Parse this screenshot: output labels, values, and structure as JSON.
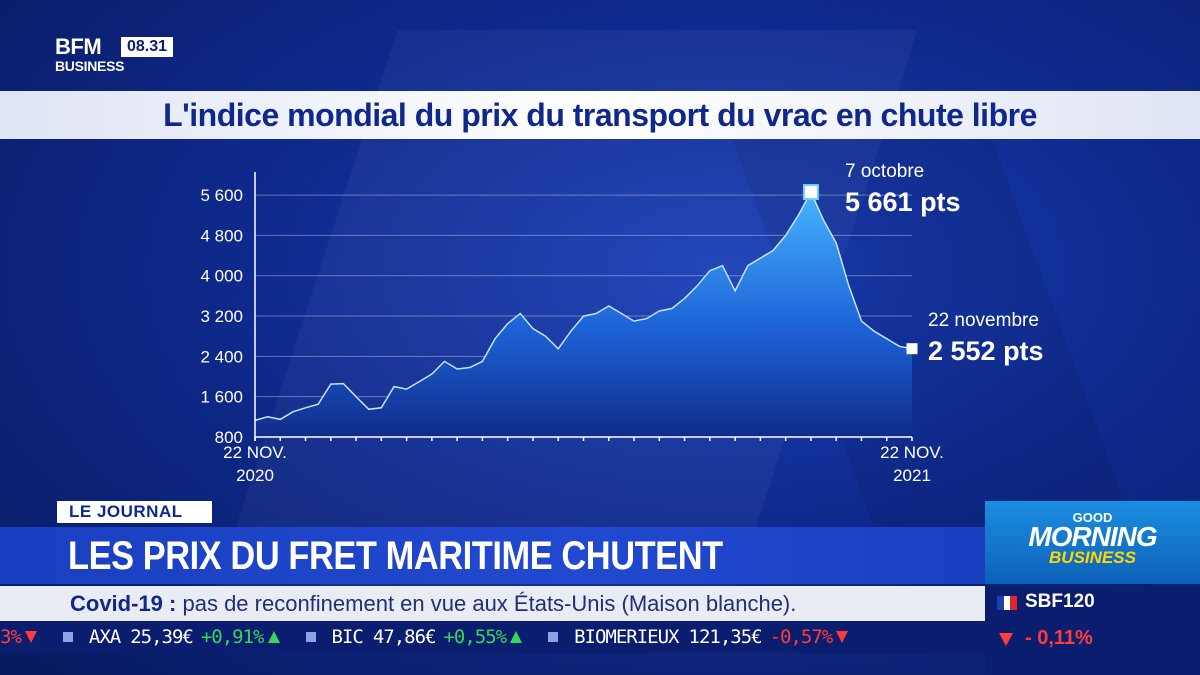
{
  "channel": {
    "logo_top": "BFM",
    "logo_bottom": "BUSINESS",
    "time": "08.31"
  },
  "title": "L'indice mondial du prix du transport du vrac en chute libre",
  "chart_data": {
    "type": "area",
    "title": "L'indice mondial du prix du transport du vrac en chute libre",
    "yticks": [
      "5 600",
      "4 800",
      "4 000",
      "3 200",
      "2 400",
      "1 600",
      "800"
    ],
    "ytick_values": [
      5600,
      4800,
      4000,
      3200,
      2400,
      1600,
      800
    ],
    "ylim": [
      800,
      5900
    ],
    "xlim": [
      0,
      52
    ],
    "x_start_label": [
      "22 NOV.",
      "2020"
    ],
    "x_end_label": [
      "22 NOV.",
      "2021"
    ],
    "grid": true,
    "color": "#2a8ff0",
    "series": [
      {
        "x": [
          0,
          1,
          2,
          3,
          4,
          5,
          6,
          7,
          8,
          9,
          10,
          11,
          12,
          13,
          14,
          15,
          16,
          17,
          18,
          19,
          20,
          21,
          22,
          23,
          24,
          25,
          26,
          27,
          28,
          29,
          30,
          31,
          32,
          33,
          34,
          35,
          36,
          37,
          38,
          39,
          40,
          41,
          42,
          43,
          44,
          45,
          46,
          47,
          48,
          49,
          50,
          51,
          52
        ],
        "values": [
          1130,
          1200,
          1150,
          1300,
          1380,
          1450,
          1850,
          1860,
          1600,
          1350,
          1380,
          1800,
          1750,
          1900,
          2050,
          2300,
          2150,
          2180,
          2300,
          2750,
          3050,
          3250,
          2950,
          2800,
          2550,
          2900,
          3200,
          3250,
          3400,
          3250,
          3100,
          3150,
          3300,
          3350,
          3550,
          3800,
          4100,
          4200,
          3700,
          4200,
          4350,
          4500,
          4800,
          5200,
          5661,
          5100,
          4650,
          3800,
          3100,
          2900,
          2750,
          2600,
          2552
        ]
      }
    ],
    "annotations": [
      {
        "date": "7 octobre",
        "value": "5 661 pts",
        "x": 44,
        "y": 5661
      },
      {
        "date": "22 novembre",
        "value": "2 552 pts",
        "x": 52,
        "y": 2552
      }
    ]
  },
  "lower_third": {
    "tag": "LE JOURNAL",
    "headline": "LES PRIX DU FRET MARITIME CHUTENT"
  },
  "news": {
    "topic": "Covid-19 :",
    "text": "pas de reconfinement en vue aux États-Unis (Maison blanche)."
  },
  "stocks": [
    {
      "symbol": "",
      "price": "",
      "change": "3%",
      "direction": "down"
    },
    {
      "symbol": "AXA",
      "price": "25,39€",
      "change": "+0,91%",
      "direction": "up"
    },
    {
      "symbol": "BIC",
      "price": "47,86€",
      "change": "+0,55%",
      "direction": "up"
    },
    {
      "symbol": "BIOMERIEUX",
      "price": "121,35€",
      "change": "-0,57%",
      "direction": "down"
    }
  ],
  "program": {
    "good": "GOOD",
    "morning": "MORNING",
    "business": "BUSINESS"
  },
  "index": {
    "name": "SBF120",
    "change": "- 0,11%"
  },
  "colors": {
    "background": "#0f2a8e",
    "accent": "#2149cf",
    "up": "#35d65c",
    "down": "#ff3b3b"
  }
}
